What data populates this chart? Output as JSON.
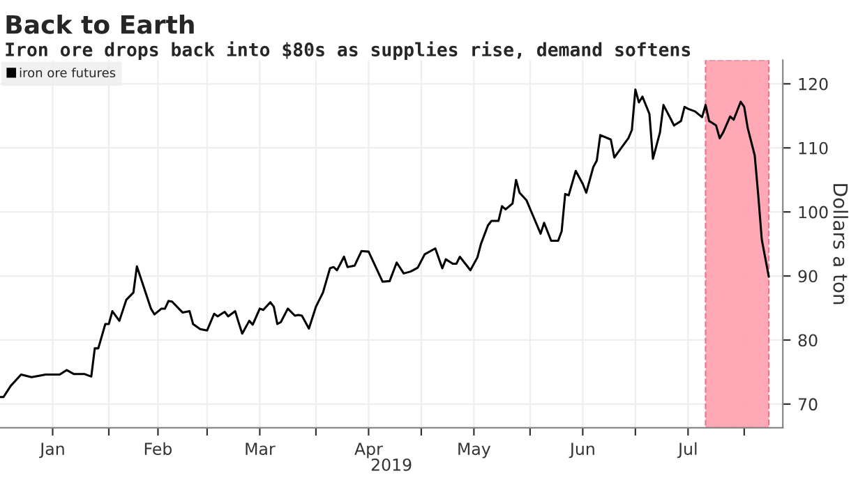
{
  "chart_data": {
    "type": "line",
    "title": "Back to Earth",
    "subtitle": "Iron ore drops back into $80s as supplies rise, demand softens",
    "xlabel": "2019",
    "ylabel": "Dollars a ton",
    "series": [
      {
        "name": "iron ore futures",
        "color": "#000000",
        "x": [
          "2019-01-01",
          "2019-01-02",
          "2019-01-04",
          "2019-01-07",
          "2019-01-10",
          "2019-01-14",
          "2019-01-18",
          "2019-01-20",
          "2019-01-22",
          "2019-01-25",
          "2019-01-27",
          "2019-01-28",
          "2019-01-29",
          "2019-01-31",
          "2019-02-01",
          "2019-02-02",
          "2019-02-04",
          "2019-02-06",
          "2019-02-08",
          "2019-02-09",
          "2019-02-13",
          "2019-02-14",
          "2019-02-16",
          "2019-02-17",
          "2019-02-18",
          "2019-02-19",
          "2019-02-22",
          "2019-02-24",
          "2019-02-25",
          "2019-02-27",
          "2019-03-01",
          "2019-03-03",
          "2019-03-04",
          "2019-03-06",
          "2019-03-07",
          "2019-03-09",
          "2019-03-10",
          "2019-03-11",
          "2019-03-13",
          "2019-03-14",
          "2019-03-16",
          "2019-03-17",
          "2019-03-19",
          "2019-03-20",
          "2019-03-21",
          "2019-03-22",
          "2019-03-24",
          "2019-03-26",
          "2019-03-27",
          "2019-03-28",
          "2019-03-30",
          "2019-04-01",
          "2019-04-03",
          "2019-04-05",
          "2019-04-06",
          "2019-04-07",
          "2019-04-09",
          "2019-04-10",
          "2019-04-12",
          "2019-04-14",
          "2019-04-16",
          "2019-04-20",
          "2019-04-22",
          "2019-04-24",
          "2019-04-26",
          "2019-04-28",
          "2019-04-30",
          "2019-05-02",
          "2019-05-05",
          "2019-05-07",
          "2019-05-08",
          "2019-05-10",
          "2019-05-11",
          "2019-05-12",
          "2019-05-15",
          "2019-05-17",
          "2019-05-18",
          "2019-05-20",
          "2019-05-21",
          "2019-05-23",
          "2019-05-24",
          "2019-05-25",
          "2019-05-27",
          "2019-05-28",
          "2019-05-29",
          "2019-05-31",
          "2019-06-04",
          "2019-06-05",
          "2019-06-07",
          "2019-06-09",
          "2019-06-10",
          "2019-06-11",
          "2019-06-12",
          "2019-06-14",
          "2019-06-16",
          "2019-06-17",
          "2019-06-19",
          "2019-06-20",
          "2019-06-21",
          "2019-06-24",
          "2019-06-25",
          "2019-06-27",
          "2019-06-29",
          "2019-06-30",
          "2019-07-01",
          "2019-07-02",
          "2019-07-03",
          "2019-07-05",
          "2019-07-06",
          "2019-07-08",
          "2019-07-09",
          "2019-07-11",
          "2019-07-12",
          "2019-07-14",
          "2019-07-15",
          "2019-07-16",
          "2019-07-18",
          "2019-07-20",
          "2019-07-21",
          "2019-07-22",
          "2019-07-24",
          "2019-07-25",
          "2019-07-26",
          "2019-07-28",
          "2019-07-29",
          "2019-07-31",
          "2019-08-01",
          "2019-08-02",
          "2019-08-04",
          "2019-08-05",
          "2019-08-06",
          "2019-08-08"
        ],
        "values": [
          71.1,
          71.1,
          72.8,
          74.6,
          74.2,
          74.6,
          74.6,
          75.3,
          74.7,
          74.7,
          74.3,
          78.7,
          78.7,
          82.5,
          82.5,
          84.5,
          83.0,
          86.3,
          87.4,
          91.5,
          84.9,
          84.0,
          84.9,
          84.9,
          86.1,
          86.0,
          84.3,
          84.5,
          82.5,
          81.7,
          81.5,
          84.1,
          83.7,
          84.4,
          83.7,
          84.5,
          82.7,
          81.0,
          83.0,
          82.4,
          84.9,
          84.7,
          85.9,
          85.2,
          82.5,
          82.8,
          84.9,
          83.8,
          83.9,
          83.8,
          81.8,
          85.2,
          87.4,
          91.2,
          91.4,
          90.9,
          93.0,
          91.4,
          91.6,
          93.9,
          93.8,
          89.1,
          89.2,
          92.1,
          90.4,
          90.7,
          91.3,
          93.4,
          94.3,
          91.2,
          92.6,
          91.9,
          91.9,
          93.0,
          90.9,
          92.9,
          95.0,
          97.9,
          98.6,
          98.6,
          100.9,
          100.4,
          101.3,
          105.0,
          103.0,
          101.8,
          96.6,
          98.3,
          95.5,
          95.5,
          97.0,
          102.8,
          102.6,
          106.4,
          104.4,
          103.0,
          107.0,
          108.0,
          112.0,
          111.3,
          108.5,
          110.0,
          111.5,
          112.8,
          119.1,
          117.1,
          118.0,
          115.3,
          108.3,
          112.4,
          116.7,
          114.6,
          113.5,
          114.2,
          116.4,
          116.1,
          115.7,
          114.8,
          116.7,
          114.2,
          113.5,
          111.5,
          112.4,
          114.9,
          114.4,
          117.2,
          116.4,
          113.1,
          108.8,
          102.6,
          95.7,
          89.9
        ]
      }
    ],
    "xlim": [
      "2019-01-01",
      "2019-08-12"
    ],
    "xticks": [
      {
        "value": "2019-01-16",
        "label": "Jan"
      },
      {
        "value": "2019-02-01",
        "label": null
      },
      {
        "value": "2019-02-15",
        "label": "Feb"
      },
      {
        "value": "2019-03-01",
        "label": null
      },
      {
        "value": "2019-03-16",
        "label": "Mar"
      },
      {
        "value": "2019-04-01",
        "label": null
      },
      {
        "value": "2019-04-16",
        "label": "Apr"
      },
      {
        "value": "2019-05-01",
        "label": null
      },
      {
        "value": "2019-05-16",
        "label": "May"
      },
      {
        "value": "2019-06-01",
        "label": null
      },
      {
        "value": "2019-06-16",
        "label": "Jun"
      },
      {
        "value": "2019-07-01",
        "label": null
      },
      {
        "value": "2019-07-16",
        "label": "Jul"
      },
      {
        "value": "2019-08-01",
        "label": null
      }
    ],
    "ylim": [
      66.3,
      123.7
    ],
    "yticks": [
      70,
      80,
      90,
      100,
      110,
      120
    ],
    "bands": [
      {
        "axis": "x",
        "from": "2019-07-21",
        "to": "2019-08-08",
        "color": "#ff9aab"
      }
    ],
    "grid": true,
    "legend": "top left",
    "marker": "none",
    "line_style": "solid"
  }
}
